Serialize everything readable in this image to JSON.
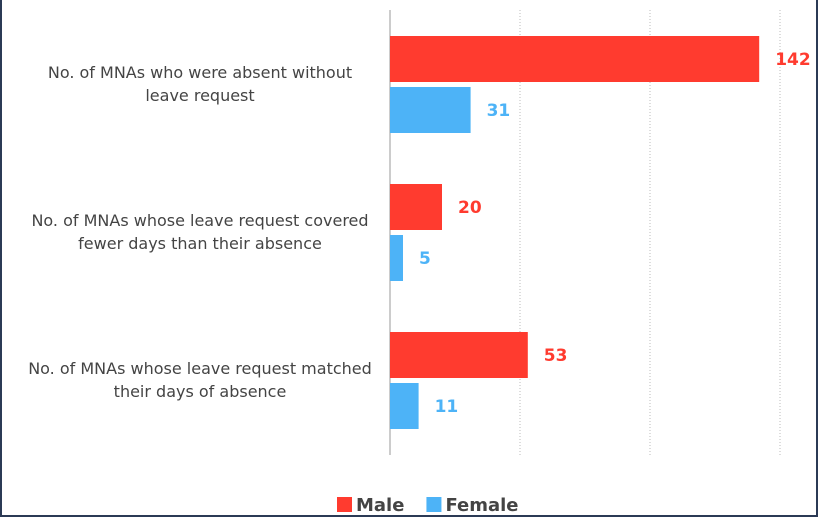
{
  "chart_data": {
    "type": "barh",
    "categories": [
      "No. of MNAs who were absent without leave request",
      "No. of MNAs whose leave request covered fewer days than their absence",
      "No. of MNAs whose leave request matched their days of absence"
    ],
    "series": [
      {
        "name": "Male",
        "color": "#ff3b2f",
        "values": [
          142,
          20,
          53
        ]
      },
      {
        "name": "Female",
        "color": "#4db3f7",
        "values": [
          31,
          5,
          11
        ]
      }
    ],
    "xlim": [
      0,
      150
    ],
    "xgrid": [
      50,
      100,
      150
    ],
    "legend": "bottom"
  }
}
